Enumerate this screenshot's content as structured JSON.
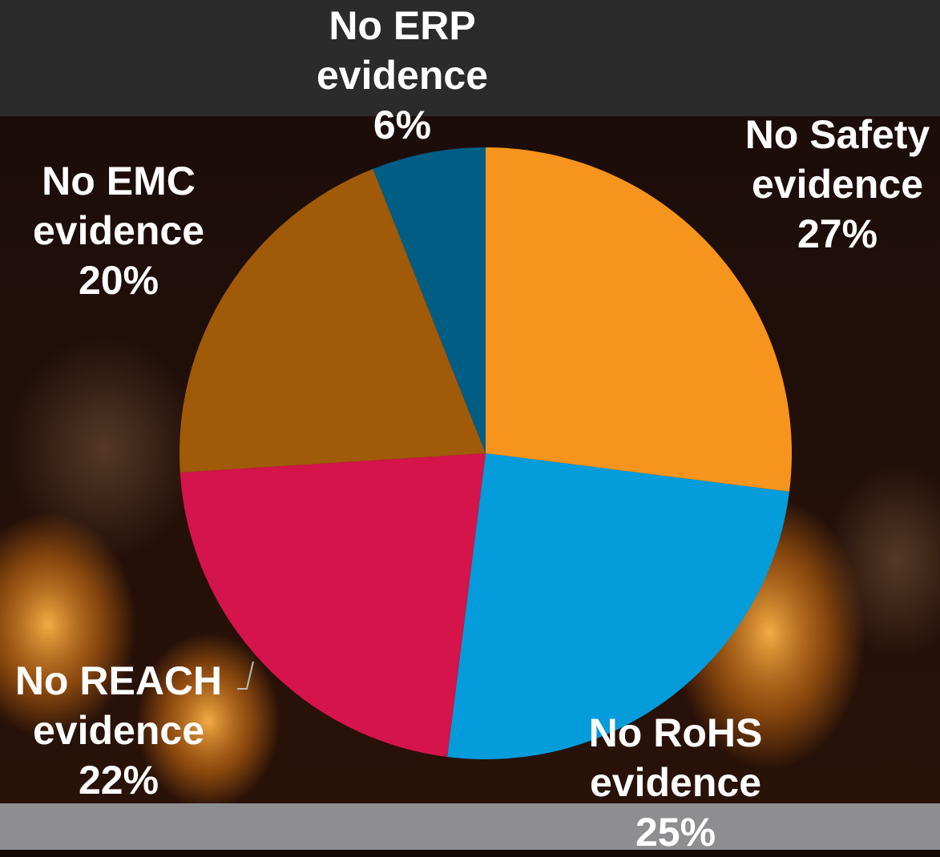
{
  "chart_data": {
    "type": "pie",
    "categories": [
      "No Safety evidence",
      "No RoHS evidence",
      "No REACH evidence",
      "No EMC evidence",
      "No ERP evidence"
    ],
    "values": [
      27,
      25,
      22,
      20,
      6
    ],
    "value_labels": [
      "27%",
      "25%",
      "22%",
      "20%",
      "6%"
    ],
    "colors": [
      "#f7941d",
      "#049cdb",
      "#d4144a",
      "#a05a08",
      "#005e85"
    ]
  }
}
